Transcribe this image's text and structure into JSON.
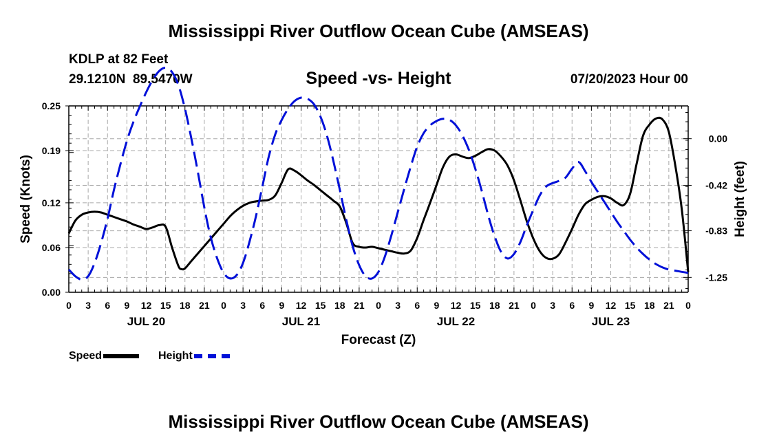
{
  "header": {
    "title": "Mississippi River Outflow Ocean Cube (AMSEAS)",
    "station": "KDLP at 82 Feet",
    "lat": "29.1210N",
    "lon": "89.5470W",
    "subtitle": "Speed -vs- Height",
    "datetime": "07/20/2023 Hour 00"
  },
  "footer": {
    "title": "Mississippi River Outflow Ocean Cube (AMSEAS)"
  },
  "legend": {
    "speed_label": "Speed",
    "height_label": "Height"
  },
  "chart_data": {
    "type": "line",
    "title": "Speed -vs- Height",
    "xlabel": "Forecast (Z)",
    "ylabel_left": "Speed (Knots)",
    "ylabel_right": "Height (feet)",
    "x_unit": "hours from 07/20/2023 00Z",
    "xlim": [
      0,
      96
    ],
    "x_ticks": [
      0,
      3,
      6,
      9,
      12,
      15,
      18,
      21,
      24,
      27,
      30,
      33,
      36,
      39,
      42,
      45,
      48,
      51,
      54,
      57,
      60,
      63,
      66,
      69,
      72,
      75,
      78,
      81,
      84,
      87,
      90,
      93,
      96
    ],
    "x_tick_labels": [
      "0",
      "3",
      "6",
      "9",
      "12",
      "15",
      "18",
      "21",
      "0",
      "3",
      "6",
      "9",
      "12",
      "15",
      "18",
      "21",
      "0",
      "3",
      "6",
      "9",
      "12",
      "15",
      "18",
      "21",
      "0",
      "3",
      "6",
      "9",
      "12",
      "15",
      "18",
      "21",
      "0"
    ],
    "day_labels": [
      {
        "hour": 12,
        "label": "JUL 20"
      },
      {
        "hour": 36,
        "label": "JUL 21"
      },
      {
        "hour": 60,
        "label": "JUL 22"
      },
      {
        "hour": 84,
        "label": "JUL 23"
      }
    ],
    "ylim_left": [
      0,
      0.25
    ],
    "y_ticks_left": [
      0.0,
      0.06,
      0.12,
      0.19,
      0.25
    ],
    "y_tick_labels_left": [
      "0.00",
      "0.06",
      "0.12",
      "0.19",
      "0.25"
    ],
    "y_ticks_right": [
      0.0,
      -0.42,
      -0.83,
      -1.25
    ],
    "y_tick_labels_right": [
      "0.00",
      "-0.42",
      "-0.83",
      "-1.25"
    ],
    "right_axis_map": {
      "left_value_at_0ft": 0.206,
      "left_units_per_ft": 0.1488
    },
    "grid": true,
    "series": [
      {
        "name": "Speed",
        "axis": "left",
        "color": "#000000",
        "dash": "solid",
        "points": [
          [
            0,
            0.079
          ],
          [
            1,
            0.096
          ],
          [
            2,
            0.104
          ],
          [
            3,
            0.107
          ],
          [
            4,
            0.108
          ],
          [
            5,
            0.107
          ],
          [
            6,
            0.104
          ],
          [
            7,
            0.101
          ],
          [
            8,
            0.098
          ],
          [
            9,
            0.095
          ],
          [
            10,
            0.091
          ],
          [
            11,
            0.088
          ],
          [
            12,
            0.085
          ],
          [
            13,
            0.087
          ],
          [
            14,
            0.09
          ],
          [
            15,
            0.088
          ],
          [
            16,
            0.06
          ],
          [
            17,
            0.035
          ],
          [
            17.5,
            0.031
          ],
          [
            18,
            0.032
          ],
          [
            19,
            0.042
          ],
          [
            20,
            0.052
          ],
          [
            21,
            0.062
          ],
          [
            22,
            0.072
          ],
          [
            23,
            0.082
          ],
          [
            24,
            0.092
          ],
          [
            25,
            0.102
          ],
          [
            26,
            0.11
          ],
          [
            27,
            0.116
          ],
          [
            28,
            0.12
          ],
          [
            29,
            0.122
          ],
          [
            30,
            0.123
          ],
          [
            31,
            0.124
          ],
          [
            32,
            0.13
          ],
          [
            33,
            0.147
          ],
          [
            34,
            0.165
          ],
          [
            35,
            0.163
          ],
          [
            36,
            0.157
          ],
          [
            37,
            0.15
          ],
          [
            38,
            0.144
          ],
          [
            39,
            0.137
          ],
          [
            40,
            0.13
          ],
          [
            41,
            0.123
          ],
          [
            42,
            0.115
          ],
          [
            43,
            0.093
          ],
          [
            44,
            0.066
          ],
          [
            45,
            0.061
          ],
          [
            46,
            0.06
          ],
          [
            47,
            0.061
          ],
          [
            48,
            0.059
          ],
          [
            49,
            0.057
          ],
          [
            50,
            0.055
          ],
          [
            51,
            0.053
          ],
          [
            52,
            0.052
          ],
          [
            53,
            0.056
          ],
          [
            54,
            0.073
          ],
          [
            55,
            0.097
          ],
          [
            56,
            0.12
          ],
          [
            57,
            0.144
          ],
          [
            58,
            0.168
          ],
          [
            59,
            0.182
          ],
          [
            60,
            0.185
          ],
          [
            61,
            0.182
          ],
          [
            62,
            0.18
          ],
          [
            63,
            0.183
          ],
          [
            64,
            0.188
          ],
          [
            65,
            0.192
          ],
          [
            66,
            0.19
          ],
          [
            67,
            0.182
          ],
          [
            68,
            0.17
          ],
          [
            69,
            0.15
          ],
          [
            70,
            0.123
          ],
          [
            71,
            0.095
          ],
          [
            72,
            0.072
          ],
          [
            73,
            0.055
          ],
          [
            74,
            0.046
          ],
          [
            75,
            0.045
          ],
          [
            76,
            0.051
          ],
          [
            77,
            0.067
          ],
          [
            78,
            0.085
          ],
          [
            79,
            0.104
          ],
          [
            80,
            0.118
          ],
          [
            81,
            0.124
          ],
          [
            82,
            0.128
          ],
          [
            83,
            0.129
          ],
          [
            84,
            0.126
          ],
          [
            85,
            0.12
          ],
          [
            86,
            0.117
          ],
          [
            87,
            0.132
          ],
          [
            88,
            0.172
          ],
          [
            89,
            0.21
          ],
          [
            90,
            0.225
          ],
          [
            91,
            0.233
          ],
          [
            92,
            0.232
          ],
          [
            93,
            0.215
          ],
          [
            94,
            0.17
          ],
          [
            95,
            0.112
          ],
          [
            96,
            0.027
          ]
        ]
      },
      {
        "name": "Height",
        "axis": "right",
        "color": "#0010d8",
        "dash": "dashed",
        "points": [
          [
            0,
            -1.18
          ],
          [
            1,
            -1.24
          ],
          [
            2,
            -1.27
          ],
          [
            3,
            -1.24
          ],
          [
            4,
            -1.12
          ],
          [
            5,
            -0.94
          ],
          [
            6,
            -0.72
          ],
          [
            7,
            -0.46
          ],
          [
            8,
            -0.23
          ],
          [
            9,
            -0.02
          ],
          [
            10,
            0.15
          ],
          [
            11,
            0.29
          ],
          [
            12,
            0.42
          ],
          [
            13,
            0.53
          ],
          [
            14,
            0.61
          ],
          [
            15,
            0.64
          ],
          [
            16,
            0.6
          ],
          [
            17,
            0.48
          ],
          [
            18,
            0.27
          ],
          [
            19,
            0.0
          ],
          [
            20,
            -0.3
          ],
          [
            21,
            -0.62
          ],
          [
            22,
            -0.89
          ],
          [
            23,
            -1.08
          ],
          [
            24,
            -1.21
          ],
          [
            25,
            -1.26
          ],
          [
            26,
            -1.23
          ],
          [
            27,
            -1.12
          ],
          [
            28,
            -0.93
          ],
          [
            29,
            -0.7
          ],
          [
            30,
            -0.43
          ],
          [
            31,
            -0.16
          ],
          [
            32,
            0.04
          ],
          [
            33,
            0.17
          ],
          [
            34,
            0.27
          ],
          [
            35,
            0.34
          ],
          [
            36,
            0.37
          ],
          [
            37,
            0.36
          ],
          [
            38,
            0.31
          ],
          [
            39,
            0.2
          ],
          [
            40,
            0.03
          ],
          [
            41,
            -0.2
          ],
          [
            42,
            -0.46
          ],
          [
            43,
            -0.73
          ],
          [
            44,
            -0.97
          ],
          [
            45,
            -1.14
          ],
          [
            46,
            -1.24
          ],
          [
            47,
            -1.26
          ],
          [
            48,
            -1.2
          ],
          [
            49,
            -1.06
          ],
          [
            50,
            -0.87
          ],
          [
            51,
            -0.66
          ],
          [
            52,
            -0.45
          ],
          [
            53,
            -0.25
          ],
          [
            54,
            -0.07
          ],
          [
            55,
            0.05
          ],
          [
            56,
            0.12
          ],
          [
            57,
            0.16
          ],
          [
            58,
            0.18
          ],
          [
            59,
            0.17
          ],
          [
            60,
            0.12
          ],
          [
            61,
            0.03
          ],
          [
            62,
            -0.1
          ],
          [
            63,
            -0.27
          ],
          [
            64,
            -0.47
          ],
          [
            65,
            -0.69
          ],
          [
            66,
            -0.88
          ],
          [
            67,
            -1.02
          ],
          [
            68,
            -1.08
          ],
          [
            69,
            -1.04
          ],
          [
            70,
            -0.93
          ],
          [
            71,
            -0.78
          ],
          [
            72,
            -0.64
          ],
          [
            73,
            -0.51
          ],
          [
            74,
            -0.43
          ],
          [
            75,
            -0.4
          ],
          [
            76,
            -0.38
          ],
          [
            77,
            -0.35
          ],
          [
            78,
            -0.27
          ],
          [
            79,
            -0.21
          ],
          [
            80,
            -0.29
          ],
          [
            81,
            -0.39
          ],
          [
            82,
            -0.48
          ],
          [
            83,
            -0.57
          ],
          [
            84,
            -0.66
          ],
          [
            85,
            -0.75
          ],
          [
            86,
            -0.83
          ],
          [
            87,
            -0.91
          ],
          [
            88,
            -0.98
          ],
          [
            89,
            -1.04
          ],
          [
            90,
            -1.09
          ],
          [
            91,
            -1.13
          ],
          [
            92,
            -1.16
          ],
          [
            93,
            -1.18
          ],
          [
            94,
            -1.19
          ],
          [
            95,
            -1.2
          ],
          [
            96,
            -1.21
          ]
        ]
      }
    ]
  }
}
